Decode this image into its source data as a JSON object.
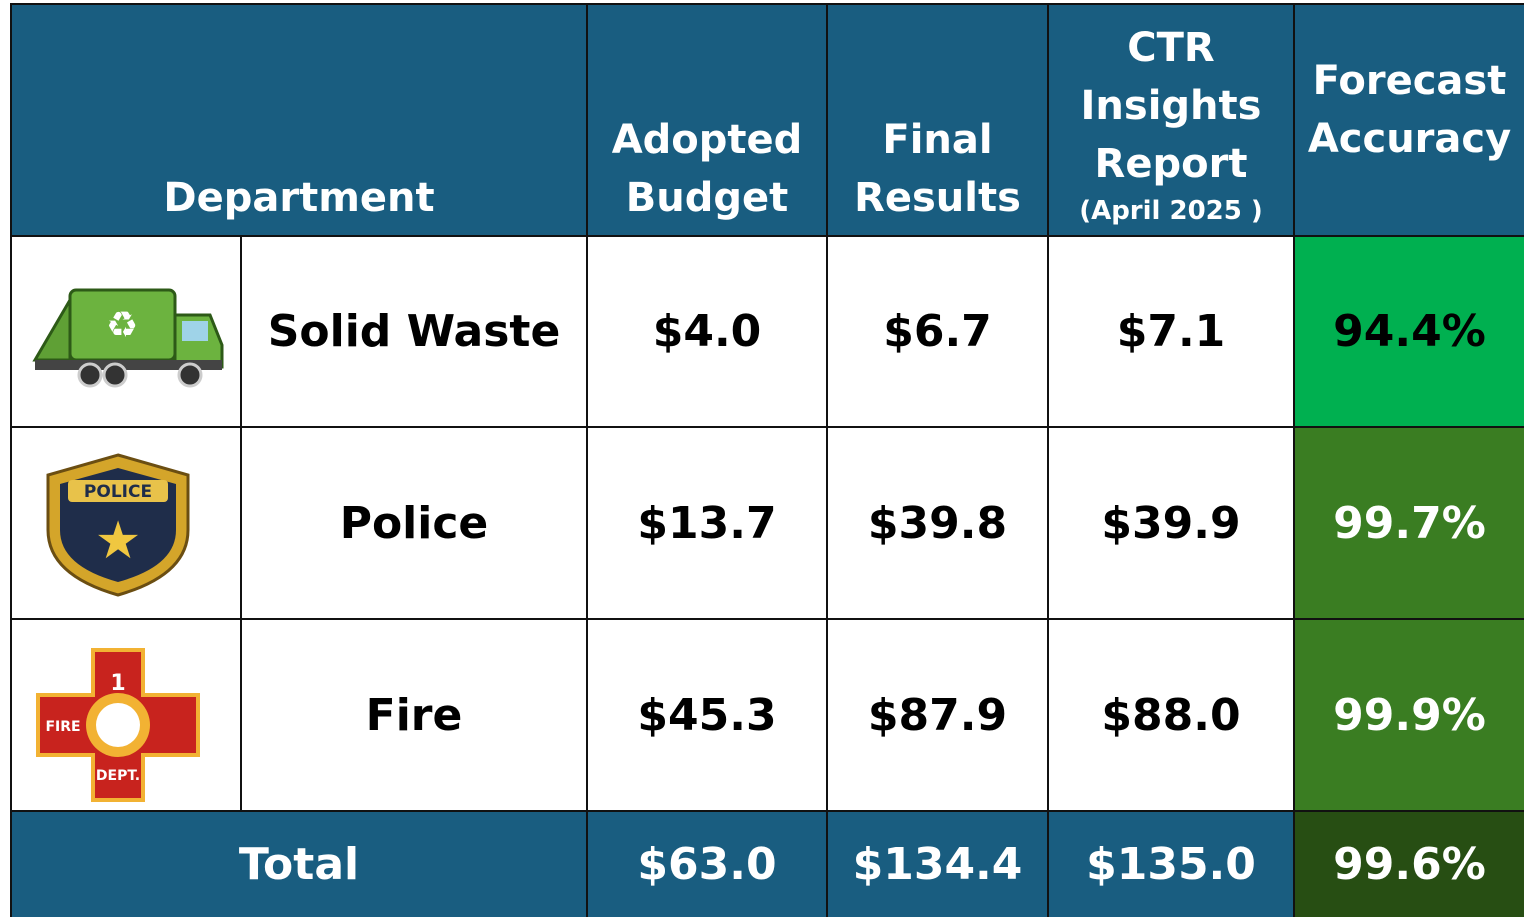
{
  "header": {
    "columns": [
      {
        "lines": [
          "Department"
        ]
      },
      {
        "lines": [
          "Adopted",
          "Budget"
        ]
      },
      {
        "lines": [
          "Final",
          "Results"
        ]
      },
      {
        "lines": [
          "CTR",
          "Insights",
          "Report"
        ],
        "note": "(April 2025 )"
      },
      {
        "lines": [
          "Forecast",
          "Accuracy"
        ]
      }
    ]
  },
  "rows": [
    {
      "department": "Solid Waste",
      "adopted": "$4.0",
      "final": "$6.7",
      "ctr": "$7.1",
      "accuracy": "94.4%"
    },
    {
      "department": "Police",
      "adopted": "$13.7",
      "final": "$39.8",
      "ctr": "$39.9",
      "accuracy": "99.7%"
    },
    {
      "department": "Fire",
      "adopted": "$45.3",
      "final": "$87.9",
      "ctr": "$88.0",
      "accuracy": "99.9%"
    }
  ],
  "total": {
    "label": "Total",
    "adopted": "$63.0",
    "final": "$134.4",
    "ctr": "$135.0",
    "accuracy": "99.6%"
  }
}
